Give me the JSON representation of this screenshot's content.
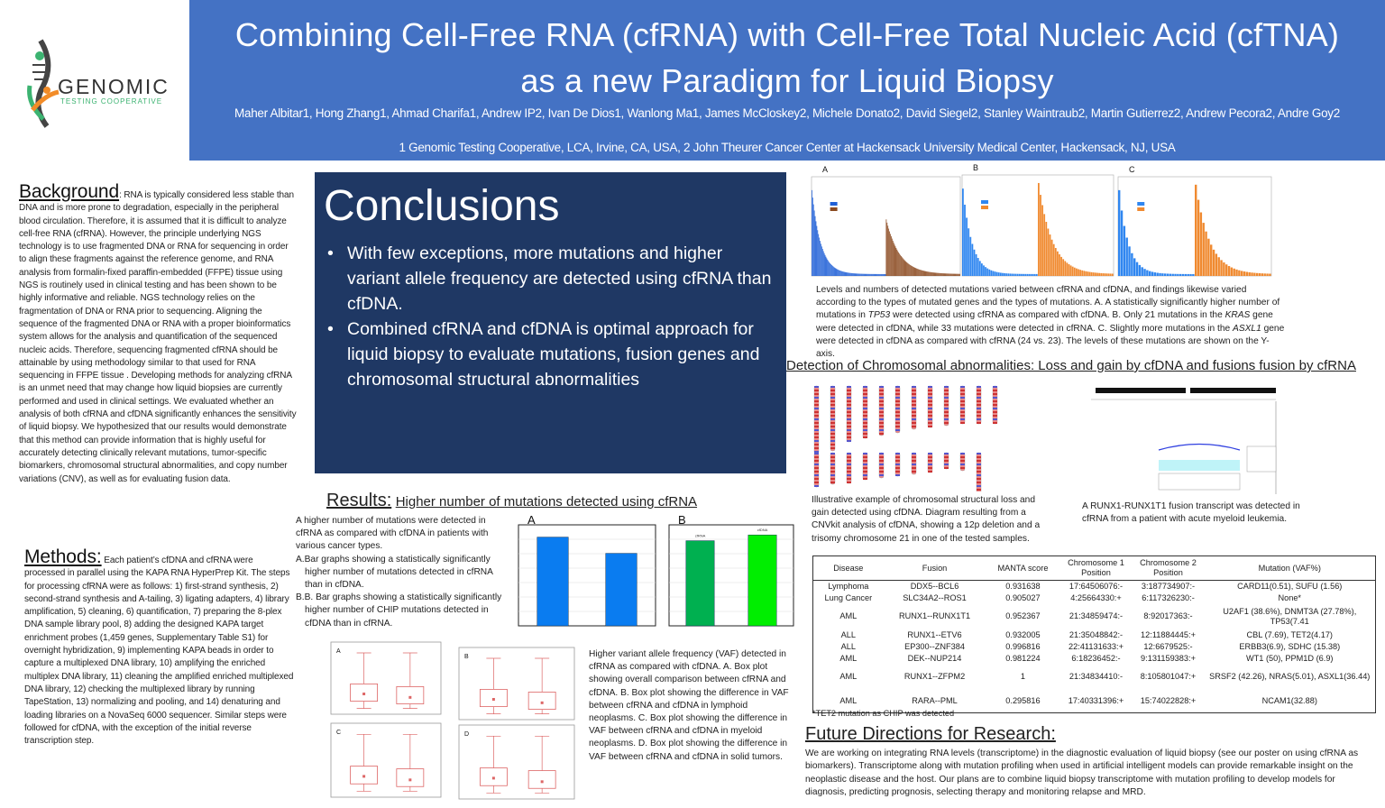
{
  "logo": {
    "brand": "GENOMIC",
    "tagline": "TESTING COOPERATIVE"
  },
  "header": {
    "title_line1": "Combining Cell-Free RNA (cfRNA) with Cell-Free Total Nucleic Acid (cfTNA)",
    "title_line2": "as a new Paradigm for Liquid Biopsy",
    "authors": "Maher Albitar1, Hong Zhang1, Ahmad Charifa1, Andrew IP2, Ivan De Dios1, Wanlong Ma1, James McCloskey2, Michele Donato2, David Siegel2, Stanley Waintraub2, Martin Gutierrez2, Andrew Pecora2, Andre Goy2",
    "affiliations": "1 Genomic Testing Cooperative, LCA, Irvine, CA, USA, 2 John Theurer Cancer Center at Hackensack University Medical Center, Hackensack, NJ, USA"
  },
  "background": {
    "heading": "Background",
    "text": ": RNA is typically considered less stable than DNA and is more prone to degradation, especially in the peripheral blood circulation. Therefore, it is assumed that it is difficult to analyze cell-free RNA (cfRNA). However, the principle underlying NGS technology is to use fragmented DNA or RNA for sequencing in order to align these fragments against the reference genome, and RNA analysis from formalin-fixed paraffin-embedded (FFPE) tissue using NGS is routinely used in clinical testing and has been shown to be highly informative and reliable. NGS technology relies on the fragmentation of DNA or RNA prior to sequencing. Aligning the sequence of the fragmented DNA or RNA with a proper bioinformatics system allows for the analysis and quantification of the sequenced nucleic acids. Therefore, sequencing fragmented cfRNA should be attainable by using methodology similar to that used for RNA sequencing in FFPE tissue . Developing methods for analyzing cfRNA is an unmet need that may change how liquid biopsies are currently performed and used in clinical settings. We evaluated whether an analysis of both cfRNA and cfDNA significantly enhances the sensitivity of liquid biopsy. We hypothesized that our results would demonstrate that this method can provide information that is highly useful for accurately detecting clinically relevant mutations, tumor-specific biomarkers, chromosomal structural abnormalities, and copy number variations (CNV), as well as for evaluating fusion data."
  },
  "methods": {
    "heading": "Methods:",
    "text": " Each patient’s cfDNA and cfRNA were processed in parallel using the KAPA RNA HyperPrep Kit. The steps for processing cfRNA were as follows: 1) first-strand synthesis, 2) second-strand synthesis and A-tailing, 3) ligating adapters, 4) library amplification, 5) cleaning, 6) quantification, 7) preparing the 8-plex DNA sample library pool, 8) adding the designed KAPA target enrichment probes (1,459 genes, Supplementary Table S1) for overnight hybridization, 9) implementing KAPA beads in order to capture a multiplexed DNA library, 10) amplifying the enriched multiplex DNA library, 11) cleaning the amplified enriched multiplexed DNA library, 12) checking the multiplexed library by running TapeStation, 13) normalizing and pooling, and 14) denaturing and loading libraries on a NovaSeq 6000 sequencer. Similar steps were followed for cfDNA, with the exception of the initial reverse transcription step."
  },
  "conclusions": {
    "heading": "Conclusions",
    "bullets": [
      "With few exceptions, more mutations and higher variant allele frequency are detected using cfRNA than cfDNA.",
      "Combined cfRNA and cfDNA is optimal approach for liquid biopsy to evaluate mutations, fusion genes and chromosomal structural abnormalities"
    ]
  },
  "results": {
    "heading": "Results:",
    "subheading": "Higher number of mutations detected using cfRNA",
    "intro": "A higher number of mutations were detected in cfRNA as compared with cfDNA in patients with various cancer types.",
    "item_a": "A.Bar graphs showing a statistically significantly higher number of mutations detected in cfRNA than in cfDNA.",
    "item_b": "B.B. Bar graphs showing a statistically significantly higher number of CHIP mutations detected in cfDNA than in cfRNA.",
    "fig_a": {
      "letter": "A",
      "ylim": [
        0,
        1400
      ],
      "values": [
        1230,
        1005
      ],
      "colors": [
        "#0a7cf0",
        "#0a7cf0"
      ]
    },
    "fig_b": {
      "letter": "B",
      "ylim": [
        0,
        140
      ],
      "categories": [
        "cfRNA",
        "cfDNA"
      ],
      "values": [
        118,
        126
      ],
      "colors": [
        "#00b050",
        "#00ee00"
      ]
    },
    "vaf_caption": "Higher variant allele frequency (VAF) detected in cfRNA as compared with cfDNA. A. Box plot showing overall comparison between cfRNA and cfDNA.  B. Box plot showing the difference in VAF between cfRNA and cfDNA in lymphoid neoplasms.  C. Box plot showing the difference in VAF between cfRNA and cfDNA in myeloid neoplasms. D. Box plot showing the difference in VAF between cfRNA and cfDNA in solid tumors.",
    "boxplot_letters": [
      "A",
      "B",
      "C",
      "D"
    ]
  },
  "mutations_figure": {
    "letters": [
      "A",
      "B",
      "C"
    ],
    "colors": {
      "cfRNA_a": "#1f5fd6",
      "cfDNA_a": "#8b4a20",
      "cfRNA": "#2f86f0",
      "cfDNA": "#f08a30"
    },
    "caption_parts": [
      "Levels and numbers of detected mutations varied between cfRNA and cfDNA, and findings likewise varied according to the types of mutated genes and the types of mutations.  A. A statistically significantly higher number of mutations in ",
      "TP53",
      " were detected using cfRNA as compared with cfDNA. B. Only 21 mutations in the ",
      "KRAS",
      " gene were detected in cfDNA, while 33 mutations were detected in cfRNA. C. Slightly more mutations in the ",
      "ASXL1",
      " gene were detected in cfDNA as compared with cfRNA (24 vs. 23). The levels of these mutations are shown on the Y-axis."
    ]
  },
  "chromosomal": {
    "heading": "Detection of Chromosomal abnormalities: Loss and gain by cfDNA and fusions fusion by cfRNA",
    "cnv_caption": "Illustrative example of chromosomal structural loss and gain detected using cfDNA.  Diagram resulting from a CNVkit analysis of cfDNA, showing a 12p deletion and a trisomy chromosome 21 in one of the tested samples.",
    "fusion_caption": "A RUNX1-RUNX1T1 fusion transcript was detected in cfRNA from a patient with acute myeloid leukemia.",
    "table": {
      "headers": [
        "Disease",
        "Fusion",
        "MANTA score",
        "Chromosome 1 Position",
        "Chromosome 2 Position",
        "Mutation (VAF%)"
      ],
      "rows": [
        [
          "Lymphoma",
          "DDX5--BCL6",
          "0.931638",
          "17:64506076:-",
          "3:187734907:-",
          "CARD11(0.51), SUFU (1.56)"
        ],
        [
          "Lung Cancer",
          "SLC34A2--ROS1",
          "0.905027",
          "4:25664330:+",
          "6:117326230:-",
          "None*"
        ],
        [
          "AML",
          "RUNX1--RUNX1T1",
          "0.952367",
          "21:34859474:-",
          "8:92017363:-",
          "U2AF1 (38.6%), DNMT3A (27.78%), TP53(7.41"
        ],
        [
          "ALL",
          "RUNX1--ETV6",
          "0.932005",
          "21:35048842:-",
          "12:11884445:+",
          "CBL (7.69), TET2(4.17)"
        ],
        [
          "ALL",
          "EP300--ZNF384",
          "0.996816",
          "22:41131633:+",
          "12:6679525:-",
          "ERBB3(6.9), SDHC (15.38)"
        ],
        [
          "AML",
          "DEK--NUP214",
          "0.981224",
          "6:18236452:-",
          "9:131159383:+",
          "WT1 (50), PPM1D (6.9)"
        ],
        [
          "AML",
          "RUNX1--ZFPM2",
          "1",
          "21:34834410:-",
          "8:105801047:+",
          "SRSF2 (42.26), NRAS(5.01), ASXL1(36.44)"
        ],
        [
          "AML",
          "RARA--PML",
          "0.295816",
          "17:40331396:+",
          "15:74022828:+",
          "NCAM1(32.88)"
        ]
      ],
      "footnote": "*TET2 mutation as CHIP was detected"
    }
  },
  "future": {
    "heading": "Future Directions for Research:",
    "text": "We are working on integrating RNA levels (transcriptome) in the diagnostic evaluation of liquid biopsy (see our poster on using cfRNA as biomarkers). Transcriptome along with mutation profiling when used in artificial intelligent models can provide remarkable insight on the neoplastic disease and the host.  Our plans are to combine liquid biopsy transcriptome with mutation profiling to develop models for diagnosis, predicting prognosis, selecting therapy and monitoring relapse and MRD."
  },
  "colors": {
    "banner": "#4472C4",
    "conclusions_bg": "#1F3864",
    "logo_green": "#3cb371",
    "logo_orange": "#f28c28"
  }
}
